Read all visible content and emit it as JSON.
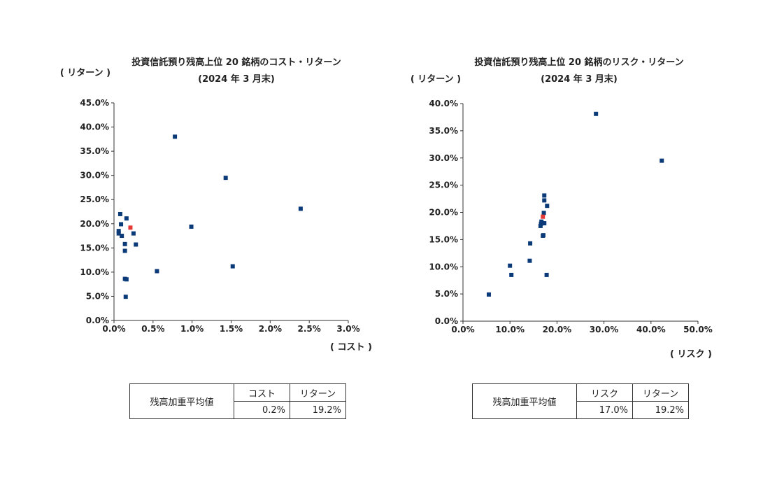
{
  "chart_data": [
    {
      "type": "scatter",
      "title": "投資信託預り残高上位 20 銘柄のコスト・リターン",
      "subtitle": "(2024 年 3 月末)",
      "xlabel": "( コスト )",
      "ylabel": "( リターン )",
      "xlim": [
        0,
        0.03
      ],
      "ylim": [
        0,
        0.45
      ],
      "xticks": [
        "0.0%",
        "0.5%",
        "1.0%",
        "1.5%",
        "2.0%",
        "2.5%",
        "3.0%"
      ],
      "yticks": [
        "0.0%",
        "5.0%",
        "10.0%",
        "15.0%",
        "20.0%",
        "25.0%",
        "30.0%",
        "35.0%",
        "40.0%",
        "45.0%"
      ],
      "grid": false,
      "series": [
        {
          "color": "#0b3a78",
          "points": [
            [
              0.0008,
              0.22
            ],
            [
              0.0016,
              0.211
            ],
            [
              0.0009,
              0.199
            ],
            [
              0.0006,
              0.185
            ],
            [
              0.0006,
              0.18
            ],
            [
              0.0025,
              0.18
            ],
            [
              0.001,
              0.175
            ],
            [
              0.0014,
              0.158
            ],
            [
              0.0028,
              0.157
            ],
            [
              0.0014,
              0.144
            ],
            [
              0.0014,
              0.086
            ],
            [
              0.0016,
              0.085
            ],
            [
              0.0015,
              0.049
            ],
            [
              0.0055,
              0.102
            ],
            [
              0.0078,
              0.38
            ],
            [
              0.0099,
              0.194
            ],
            [
              0.0143,
              0.295
            ],
            [
              0.0152,
              0.112
            ],
            [
              0.0239,
              0.231
            ]
          ]
        },
        {
          "color": "#e53935",
          "points": [
            [
              0.0021,
              0.192
            ]
          ]
        }
      ]
    },
    {
      "type": "scatter",
      "title": "投資信託預り残高上位 20 銘柄のリスク・リターン",
      "subtitle": "(2024 年 3 月末)",
      "xlabel": "( リスク )",
      "ylabel": "( リターン )",
      "xlim": [
        0,
        0.5
      ],
      "ylim": [
        0,
        0.4
      ],
      "xticks": [
        "0.0%",
        "10.0%",
        "20.0%",
        "30.0%",
        "40.0%",
        "50.0%"
      ],
      "yticks": [
        "0.0%",
        "5.0%",
        "10.0%",
        "15.0%",
        "20.0%",
        "25.0%",
        "30.0%",
        "35.0%",
        "40.0%"
      ],
      "grid": false,
      "series": [
        {
          "color": "#0b3a78",
          "points": [
            [
              0.055,
              0.049
            ],
            [
              0.1,
              0.102
            ],
            [
              0.103,
              0.085
            ],
            [
              0.142,
              0.111
            ],
            [
              0.143,
              0.143
            ],
            [
              0.165,
              0.175
            ],
            [
              0.166,
              0.179
            ],
            [
              0.167,
              0.183
            ],
            [
              0.17,
              0.157
            ],
            [
              0.171,
              0.158
            ],
            [
              0.172,
              0.199
            ],
            [
              0.173,
              0.18
            ],
            [
              0.173,
              0.222
            ],
            [
              0.173,
              0.231
            ],
            [
              0.178,
              0.085
            ],
            [
              0.179,
              0.212
            ],
            [
              0.283,
              0.381
            ],
            [
              0.423,
              0.295
            ]
          ]
        },
        {
          "color": "#e53935",
          "points": [
            [
              0.17,
              0.192
            ]
          ]
        }
      ]
    }
  ],
  "tables": [
    {
      "row_label": "残高加重平均値",
      "headers": [
        "コスト",
        "リターン"
      ],
      "values": [
        "0.2%",
        "19.2%"
      ]
    },
    {
      "row_label": "残高加重平均値",
      "headers": [
        "リスク",
        "リターン"
      ],
      "values": [
        "17.0%",
        "19.2%"
      ]
    }
  ]
}
